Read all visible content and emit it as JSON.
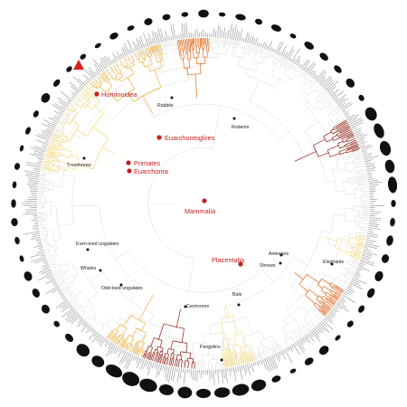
{
  "colors": {
    "background": "#ffffff",
    "branch": "#d9d9d9",
    "highlight_light": "#f7e08a",
    "highlight_mid": "#f0b43c",
    "highlight_dark": "#e06a1e",
    "highlight_deep": "#8c1d10",
    "key_node": "#c81e1e",
    "clade_node": "#111111",
    "silhouette": "#111111",
    "bars": "#a8a8a8"
  },
  "key_clades": [
    {
      "id": "hominoidea",
      "label": "Hominoidea"
    },
    {
      "id": "euarchontoglires",
      "label": "Euarchontoglires"
    },
    {
      "id": "primates",
      "label": "Primates"
    },
    {
      "id": "euarchonta",
      "label": "Euarchonta"
    },
    {
      "id": "mammalia",
      "label": "Mammalia"
    },
    {
      "id": "placentalia",
      "label": "Placentalia"
    }
  ],
  "groups": [
    {
      "id": "rabbits",
      "label": "Rabbits"
    },
    {
      "id": "rodents",
      "label": "Rodents"
    },
    {
      "id": "treeshrews",
      "label": "Treeshrews"
    },
    {
      "id": "even-toed-ungulates",
      "label": "Even-toed ungulates"
    },
    {
      "id": "whales",
      "label": "Whales"
    },
    {
      "id": "odd-toed-ungulates",
      "label": "Odd-toed ungulates"
    },
    {
      "id": "carnivores",
      "label": "Carnivores"
    },
    {
      "id": "bats",
      "label": "Bats"
    },
    {
      "id": "pangolins",
      "label": "Pangolins"
    },
    {
      "id": "anteaters",
      "label": "Anteaters"
    },
    {
      "id": "shrews",
      "label": "Shrews"
    },
    {
      "id": "elephants",
      "label": "Elephants"
    }
  ],
  "marker": {
    "icon": "red-triangle-icon",
    "color": "#d62020"
  }
}
